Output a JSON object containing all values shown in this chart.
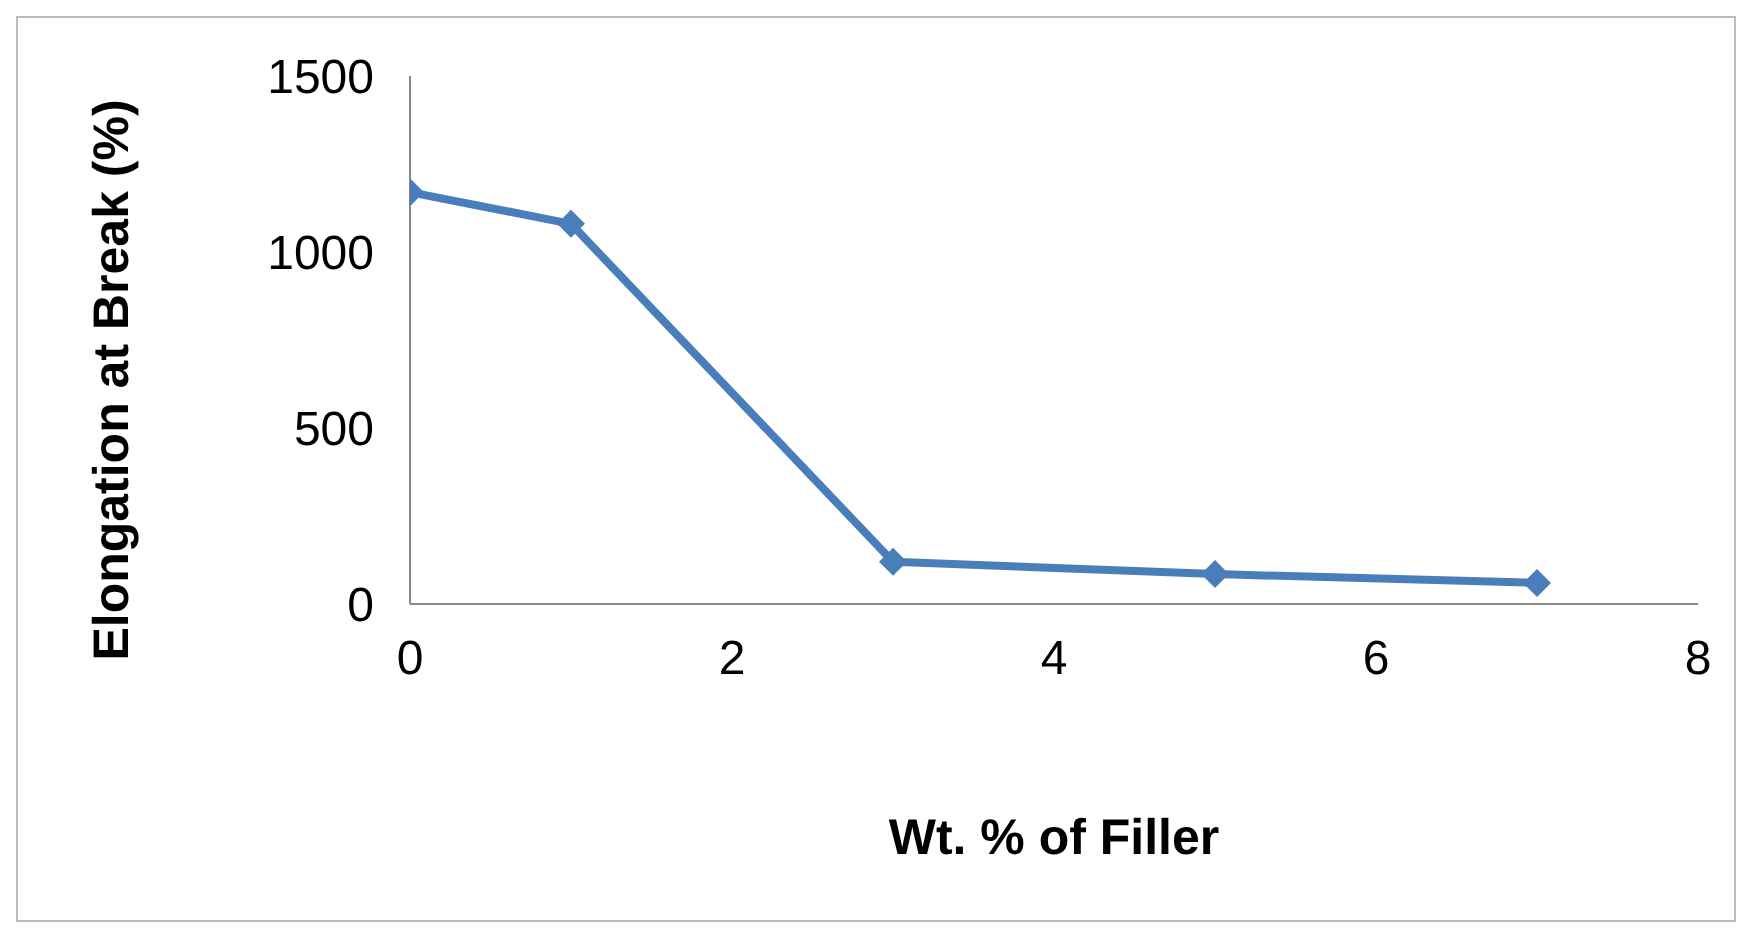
{
  "chart_data": {
    "type": "line",
    "xlabel": "Wt. % of Filler",
    "ylabel": "Elongation at Break (%)",
    "x": [
      0,
      1,
      3,
      5,
      7
    ],
    "series": [
      {
        "color": "#4a7ebb",
        "values": [
          1170,
          1080,
          120,
          85,
          60
        ]
      }
    ],
    "xlim": [
      0,
      8
    ],
    "xticks": [
      0,
      2,
      4,
      6,
      8
    ],
    "ylim": [
      0,
      1500
    ],
    "yticks": [
      0,
      500,
      1000,
      1500
    ],
    "grid": false,
    "legend": false,
    "marker": "diamond",
    "line_style": "solid"
  }
}
